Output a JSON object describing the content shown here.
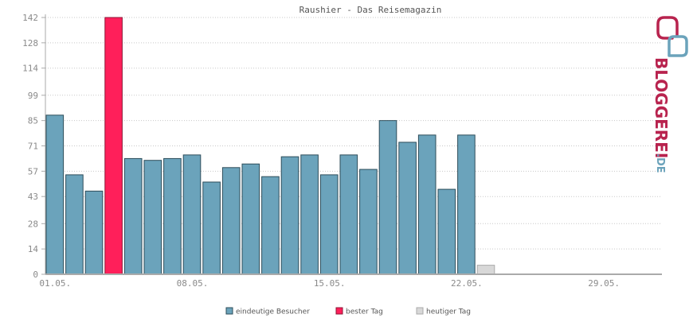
{
  "chart_data": {
    "type": "bar",
    "title": "Raushier - Das Reisemagazin",
    "xlabel": "",
    "ylabel": "",
    "ylim": [
      0,
      142
    ],
    "y_ticks": [
      0,
      14,
      28,
      43,
      57,
      71,
      85,
      99,
      114,
      128,
      142
    ],
    "x_tick_labels": [
      {
        "day": 1,
        "label": "01.05."
      },
      {
        "day": 8,
        "label": "08.05."
      },
      {
        "day": 15,
        "label": "15.05."
      },
      {
        "day": 22,
        "label": "22.05."
      },
      {
        "day": 29,
        "label": "29.05."
      }
    ],
    "days_in_month": 31,
    "grid": true,
    "legend_position": "bottom",
    "series": [
      {
        "name": "eindeutige Besucher",
        "color": "#6ba3bb",
        "values": [
          88,
          55,
          46,
          null,
          64,
          63,
          64,
          66,
          51,
          59,
          61,
          54,
          65,
          66,
          55,
          66,
          58,
          85,
          73,
          77,
          47,
          77
        ]
      },
      {
        "name": "bester Tag",
        "color": "#ff1f5a",
        "points": [
          {
            "day": 4,
            "value": 142
          }
        ]
      },
      {
        "name": "heutiger Tag",
        "color": "#d8d8d8",
        "points": [
          {
            "day": 23,
            "value": 5
          }
        ]
      }
    ]
  },
  "brand": {
    "text_main": "BLOGGEREI",
    "text_suffix": ".DE",
    "primary_color": "#b8234e",
    "secondary_color": "#6ba3bb"
  }
}
